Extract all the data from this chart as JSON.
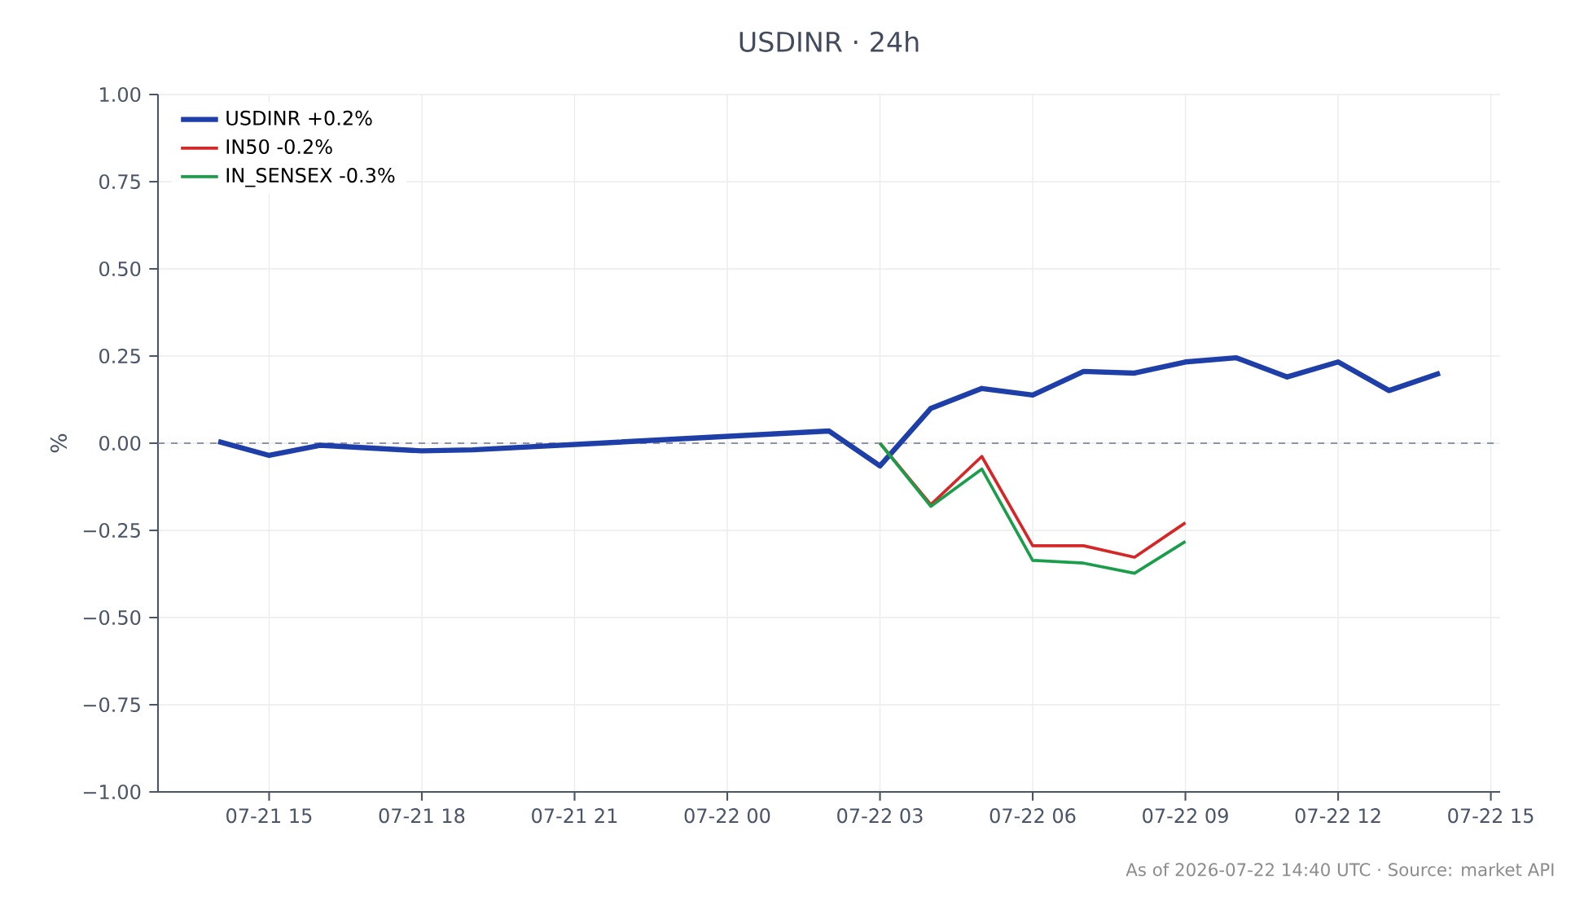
{
  "chart_data": {
    "type": "line",
    "title": "USDINR · 24h",
    "ylabel": "%",
    "annotations": [
      "As of 2026-07-22 14:40 UTC · Source: market API"
    ],
    "series": [
      {
        "name": "USDINR +0.2%",
        "color": "#1f3fa8",
        "x": [
          "2026-07-21T14:00",
          "2026-07-21T15:00",
          "2026-07-21T16:00",
          "2026-07-21T18:00",
          "2026-07-21T19:00",
          "2026-07-22T02:00",
          "2026-07-22T03:00",
          "2026-07-22T04:00",
          "2026-07-22T05:00",
          "2026-07-22T06:00",
          "2026-07-22T07:00",
          "2026-07-22T08:00",
          "2026-07-22T09:00",
          "2026-07-22T10:00",
          "2026-07-22T11:00",
          "2026-07-22T12:00",
          "2026-07-22T13:00",
          "2026-07-22T14:00"
        ],
        "values": [
          0.005,
          -0.035,
          -0.006,
          -0.022,
          -0.019,
          0.035,
          -0.065,
          0.1,
          0.157,
          0.138,
          0.206,
          0.201,
          0.233,
          0.245,
          0.19,
          0.233,
          0.151,
          0.201
        ]
      },
      {
        "name": "IN50 -0.2%",
        "color": "#d62728",
        "x": [
          "2026-07-22T03:00",
          "2026-07-22T04:00",
          "2026-07-22T05:00",
          "2026-07-22T06:00",
          "2026-07-22T07:00",
          "2026-07-22T08:00",
          "2026-07-22T09:00"
        ],
        "values": [
          0.0,
          -0.176,
          -0.038,
          -0.294,
          -0.294,
          -0.327,
          -0.228
        ]
      },
      {
        "name": "IN_SENSEX -0.3%",
        "color": "#1a9e4a",
        "x": [
          "2026-07-22T03:00",
          "2026-07-22T04:00",
          "2026-07-22T05:00",
          "2026-07-22T06:00",
          "2026-07-22T07:00",
          "2026-07-22T08:00",
          "2026-07-22T09:00"
        ],
        "values": [
          0.0,
          -0.181,
          -0.074,
          -0.336,
          -0.344,
          -0.373,
          -0.282
        ]
      }
    ],
    "xlim": [
      "2026-07-21T12:49",
      "2026-07-22T15:11"
    ],
    "xticks": [
      {
        "value": "2026-07-21T15:00",
        "label": "07-21 15"
      },
      {
        "value": "2026-07-21T18:00",
        "label": "07-21 18"
      },
      {
        "value": "2026-07-21T21:00",
        "label": "07-21 21"
      },
      {
        "value": "2026-07-22T00:00",
        "label": "07-22 00"
      },
      {
        "value": "2026-07-22T03:00",
        "label": "07-22 03"
      },
      {
        "value": "2026-07-22T06:00",
        "label": "07-22 06"
      },
      {
        "value": "2026-07-22T09:00",
        "label": "07-22 09"
      },
      {
        "value": "2026-07-22T12:00",
        "label": "07-22 12"
      },
      {
        "value": "2026-07-22T15:00",
        "label": "07-22 15"
      }
    ],
    "ylim": [
      -1.0,
      1.0
    ],
    "yticks": [
      {
        "value": -1.0,
        "label": "−1.00"
      },
      {
        "value": -0.75,
        "label": "−0.75"
      },
      {
        "value": -0.5,
        "label": "−0.50"
      },
      {
        "value": -0.25,
        "label": "−0.25"
      },
      {
        "value": 0.0,
        "label": "0.00"
      },
      {
        "value": 0.25,
        "label": "0.25"
      },
      {
        "value": 0.5,
        "label": "0.50"
      },
      {
        "value": 0.75,
        "label": "0.75"
      },
      {
        "value": 1.0,
        "label": "1.00"
      }
    ],
    "ref_lines": [
      {
        "axis": "y",
        "value": 0,
        "color": "#8a94b0",
        "line_style": "dashed"
      }
    ],
    "grid": true,
    "legend": "top left"
  }
}
